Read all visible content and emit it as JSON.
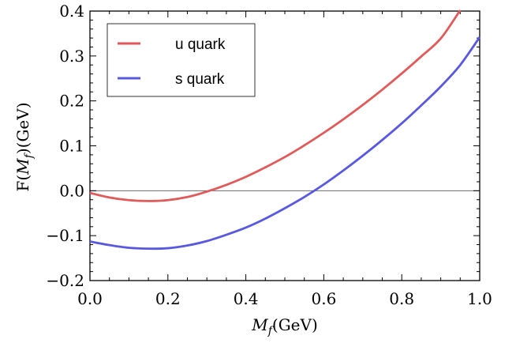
{
  "chart_data": {
    "type": "line",
    "xlabel_main": "M",
    "xlabel_sub": "f",
    "xlabel_unit": "(GeV)",
    "ylabel_prefix": "F(",
    "ylabel_main": "M",
    "ylabel_sub": "f",
    "ylabel_suffix": ")(GeV)",
    "xlim": [
      0.0,
      1.0
    ],
    "ylim": [
      -0.2,
      0.4
    ],
    "x_ticks": [
      0.0,
      0.2,
      0.4,
      0.6,
      0.8,
      1.0
    ],
    "x_tick_labels": [
      "0.0",
      "0.2",
      "0.4",
      "0.6",
      "0.8",
      "1.0"
    ],
    "y_ticks": [
      -0.2,
      -0.1,
      0.0,
      0.1,
      0.2,
      0.3,
      0.4
    ],
    "y_tick_labels": [
      "−0.2",
      "−0.1",
      "0.0",
      "0.1",
      "0.2",
      "0.3",
      "0.4"
    ],
    "zero_line": true,
    "grid": false,
    "legend_position": "top-left",
    "x": [
      0.0,
      0.05,
      0.1,
      0.15,
      0.2,
      0.25,
      0.3,
      0.35,
      0.4,
      0.45,
      0.5,
      0.55,
      0.6,
      0.65,
      0.7,
      0.75,
      0.8,
      0.85,
      0.9,
      0.95,
      1.0
    ],
    "series": [
      {
        "name": "u quark",
        "color": "#e05a5a",
        "values": [
          -0.005,
          -0.015,
          -0.021,
          -0.023,
          -0.021,
          -0.014,
          -0.002,
          0.013,
          0.031,
          0.052,
          0.075,
          0.101,
          0.129,
          0.159,
          0.191,
          0.225,
          0.261,
          0.299,
          0.339,
          0.402,
          null
        ]
      },
      {
        "name": "s quark",
        "color": "#5858e0",
        "values": [
          -0.113,
          -0.121,
          -0.127,
          -0.129,
          -0.128,
          -0.122,
          -0.112,
          -0.098,
          -0.082,
          -0.062,
          -0.039,
          -0.014,
          0.014,
          0.045,
          0.078,
          0.113,
          0.15,
          0.19,
          0.232,
          0.28,
          0.342
        ]
      }
    ]
  }
}
